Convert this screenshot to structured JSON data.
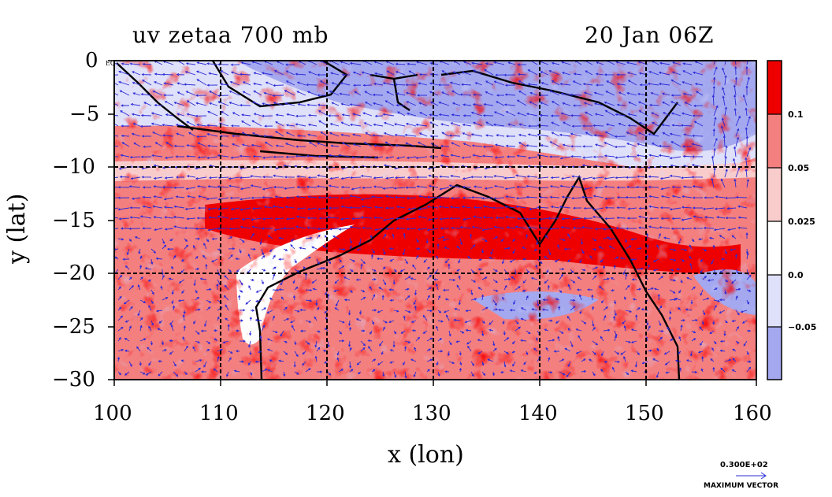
{
  "title_left": "uv zetaa 700 mb",
  "title_right": "20 Jan 06Z",
  "x_axis_label": "x (lon)",
  "y_axis_label": "y (lat)",
  "eq_label": "EQ",
  "lon_range": [
    100,
    160
  ],
  "lat_range": [
    -30,
    0
  ],
  "x_ticks": [
    "100",
    "110",
    "120",
    "130",
    "140",
    "150",
    "160"
  ],
  "y_ticks": [
    "0",
    "−5",
    "−10",
    "−15",
    "−20",
    "−25",
    "−30"
  ],
  "colorbar": {
    "labels": [
      "0.1",
      "0.05",
      "0.025",
      "0.0",
      "−0.05"
    ],
    "colors": [
      "#ee0000",
      "#f47f7f",
      "#f9cccc",
      "#ffffff",
      "#dfe0f9",
      "#a4a8ef"
    ]
  },
  "max_vector": {
    "value": "0.300E+02",
    "label": "MAXIMUM VECTOR"
  },
  "colors": {
    "vector": "#2b2bd8",
    "coast": "#000000",
    "contour": "#ee0000"
  }
}
